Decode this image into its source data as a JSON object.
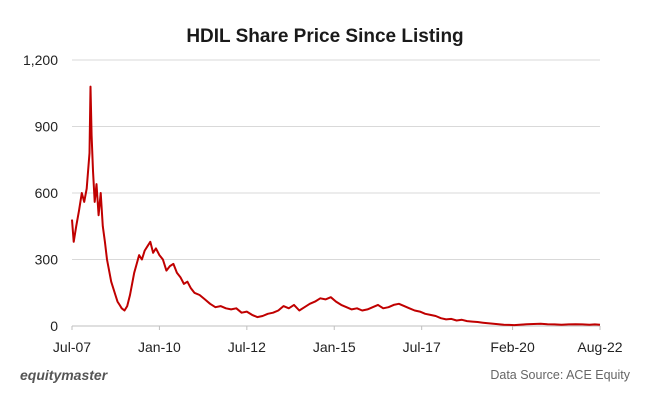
{
  "chart_data": {
    "type": "line",
    "title": "HDIL Share Price Since Listing",
    "xlabel": "",
    "ylabel": "",
    "ylim": [
      0,
      1200
    ],
    "yticks": [
      0,
      300,
      600,
      900,
      1200
    ],
    "ytick_labels": [
      "0",
      "300",
      "600",
      "900",
      "1,200"
    ],
    "x_start": 2007.5,
    "x_end": 2022.6,
    "xticks": [
      2007.5,
      2010.0,
      2012.5,
      2015.0,
      2017.5,
      2020.1,
      2022.6
    ],
    "xtick_labels": [
      "Jul-07",
      "Jan-10",
      "Jul-12",
      "Jan-15",
      "Jul-17",
      "Feb-20",
      "Aug-22"
    ],
    "color": "#c00000",
    "series": [
      {
        "name": "HDIL Share Price",
        "x": [
          2007.5,
          2007.55,
          2007.62,
          2007.7,
          2007.78,
          2007.85,
          2007.92,
          2008.0,
          2008.03,
          2008.06,
          2008.1,
          2008.15,
          2008.2,
          2008.26,
          2008.32,
          2008.38,
          2008.44,
          2008.5,
          2008.56,
          2008.62,
          2008.68,
          2008.74,
          2008.8,
          2008.86,
          2008.92,
          2009.0,
          2009.08,
          2009.16,
          2009.22,
          2009.28,
          2009.35,
          2009.42,
          2009.5,
          2009.58,
          2009.66,
          2009.74,
          2009.82,
          2009.9,
          2010.0,
          2010.1,
          2010.2,
          2010.3,
          2010.4,
          2010.5,
          2010.6,
          2010.7,
          2010.8,
          2010.9,
          2011.0,
          2011.15,
          2011.3,
          2011.45,
          2011.6,
          2011.75,
          2011.9,
          2012.05,
          2012.2,
          2012.35,
          2012.5,
          2012.65,
          2012.8,
          2012.95,
          2013.1,
          2013.25,
          2013.4,
          2013.55,
          2013.7,
          2013.85,
          2014.0,
          2014.15,
          2014.3,
          2014.45,
          2014.6,
          2014.75,
          2014.9,
          2015.05,
          2015.2,
          2015.35,
          2015.5,
          2015.65,
          2015.8,
          2015.95,
          2016.1,
          2016.25,
          2016.4,
          2016.55,
          2016.7,
          2016.85,
          2017.0,
          2017.15,
          2017.3,
          2017.45,
          2017.6,
          2017.75,
          2017.9,
          2018.05,
          2018.2,
          2018.35,
          2018.5,
          2018.65,
          2018.8,
          2018.95,
          2019.1,
          2019.25,
          2019.4,
          2019.55,
          2019.7,
          2019.85,
          2020.0,
          2020.15,
          2020.3,
          2020.5,
          2020.7,
          2020.9,
          2021.1,
          2021.3,
          2021.5,
          2021.7,
          2021.9,
          2022.1,
          2022.3,
          2022.45,
          2022.6
        ],
        "values": [
          480,
          380,
          450,
          520,
          600,
          560,
          620,
          780,
          1080,
          860,
          700,
          560,
          640,
          500,
          600,
          450,
          380,
          300,
          250,
          200,
          170,
          140,
          110,
          95,
          80,
          70,
          90,
          140,
          190,
          240,
          280,
          320,
          300,
          340,
          360,
          380,
          330,
          350,
          320,
          300,
          250,
          270,
          280,
          240,
          220,
          190,
          200,
          170,
          150,
          140,
          120,
          100,
          85,
          90,
          80,
          75,
          80,
          60,
          65,
          50,
          40,
          45,
          55,
          60,
          70,
          90,
          80,
          95,
          70,
          85,
          100,
          110,
          125,
          120,
          130,
          110,
          95,
          85,
          75,
          80,
          70,
          75,
          85,
          95,
          80,
          85,
          95,
          100,
          90,
          80,
          70,
          65,
          55,
          50,
          45,
          35,
          30,
          32,
          25,
          28,
          22,
          20,
          18,
          15,
          12,
          10,
          8,
          6,
          5,
          4,
          6,
          8,
          9,
          10,
          8,
          7,
          6,
          7,
          8,
          7,
          6,
          7,
          6
        ]
      }
    ]
  },
  "footer": {
    "brand": "equitymaster",
    "source": "Data Source: ACE Equity"
  }
}
